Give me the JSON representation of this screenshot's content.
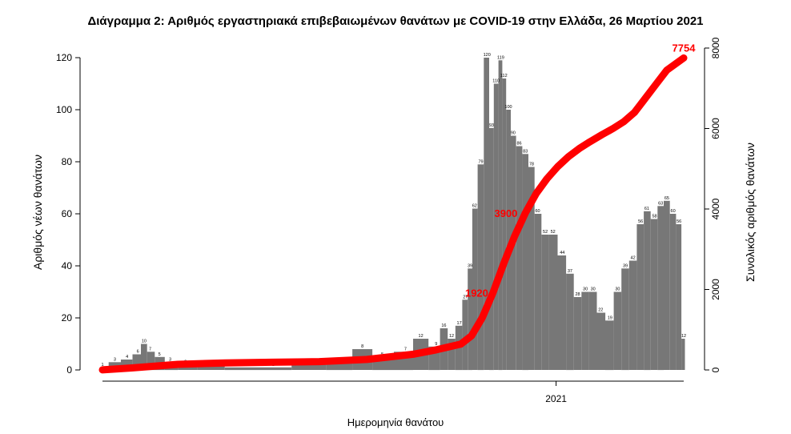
{
  "chart_data": {
    "type": "bar",
    "title": "Διάγραμμα 2: Αριθμός εργαστηριακά επιβεβαιωμένων θανάτων με COVID-19 στην Ελλάδα, 26 Μαρτίου 2021",
    "xlabel": "Ημερομηνία θανάτου",
    "ylabel": "Αριθμός νέων θανάτων",
    "ylabel_right": "Συνολικός αριθμός θανάτων",
    "ylim": [
      0,
      120
    ],
    "ylim_right": [
      0,
      8000
    ],
    "yticks": [
      0,
      20,
      40,
      60,
      80,
      100,
      120
    ],
    "yticks_right": [
      0,
      2000,
      4000,
      6000,
      8000
    ],
    "x_start": "2020-03-12",
    "x_end": "2021-03-25",
    "xtick_labels": [
      {
        "date": "2021-01-01",
        "label": "2021"
      }
    ],
    "daily_series_color": "#777777",
    "cumulative_series_color": "#ff0000",
    "daily_deaths": [
      {
        "date": "2020-03-12",
        "value": 1
      },
      {
        "date": "2020-03-20",
        "value": 3
      },
      {
        "date": "2020-03-28",
        "value": 4
      },
      {
        "date": "2020-04-04",
        "value": 6
      },
      {
        "date": "2020-04-08",
        "value": 10
      },
      {
        "date": "2020-04-12",
        "value": 7
      },
      {
        "date": "2020-04-18",
        "value": 5
      },
      {
        "date": "2020-04-25",
        "value": 3
      },
      {
        "date": "2020-05-05",
        "value": 2
      },
      {
        "date": "2020-05-20",
        "value": 2
      },
      {
        "date": "2020-06-10",
        "value": 1
      },
      {
        "date": "2020-07-01",
        "value": 1
      },
      {
        "date": "2020-07-25",
        "value": 2
      },
      {
        "date": "2020-08-15",
        "value": 3
      },
      {
        "date": "2020-08-28",
        "value": 8
      },
      {
        "date": "2020-09-10",
        "value": 5
      },
      {
        "date": "2020-09-25",
        "value": 7
      },
      {
        "date": "2020-10-05",
        "value": 12
      },
      {
        "date": "2020-10-15",
        "value": 9
      },
      {
        "date": "2020-10-20",
        "value": 16
      },
      {
        "date": "2020-10-25",
        "value": 12
      },
      {
        "date": "2020-10-30",
        "value": 17
      },
      {
        "date": "2020-11-03",
        "value": 27
      },
      {
        "date": "2020-11-06",
        "value": 39
      },
      {
        "date": "2020-11-09",
        "value": 62
      },
      {
        "date": "2020-11-13",
        "value": 79
      },
      {
        "date": "2020-11-17",
        "value": 120
      },
      {
        "date": "2020-11-20",
        "value": 93
      },
      {
        "date": "2020-11-23",
        "value": 110
      },
      {
        "date": "2020-11-26",
        "value": 119
      },
      {
        "date": "2020-11-28",
        "value": 112
      },
      {
        "date": "2020-12-01",
        "value": 100
      },
      {
        "date": "2020-12-04",
        "value": 90
      },
      {
        "date": "2020-12-08",
        "value": 86
      },
      {
        "date": "2020-12-12",
        "value": 83
      },
      {
        "date": "2020-12-16",
        "value": 78
      },
      {
        "date": "2020-12-20",
        "value": 60
      },
      {
        "date": "2020-12-25",
        "value": 52
      },
      {
        "date": "2020-12-30",
        "value": 52
      },
      {
        "date": "2021-01-05",
        "value": 44
      },
      {
        "date": "2021-01-10",
        "value": 37
      },
      {
        "date": "2021-01-15",
        "value": 28
      },
      {
        "date": "2021-01-20",
        "value": 30
      },
      {
        "date": "2021-01-25",
        "value": 30
      },
      {
        "date": "2021-01-30",
        "value": 22
      },
      {
        "date": "2021-02-05",
        "value": 19
      },
      {
        "date": "2021-02-10",
        "value": 30
      },
      {
        "date": "2021-02-15",
        "value": 39
      },
      {
        "date": "2021-02-20",
        "value": 42
      },
      {
        "date": "2021-02-25",
        "value": 56
      },
      {
        "date": "2021-03-01",
        "value": 61
      },
      {
        "date": "2021-03-06",
        "value": 58
      },
      {
        "date": "2021-03-10",
        "value": 63
      },
      {
        "date": "2021-03-14",
        "value": 65
      },
      {
        "date": "2021-03-18",
        "value": 60
      },
      {
        "date": "2021-03-22",
        "value": 56
      },
      {
        "date": "2021-03-25",
        "value": 12
      }
    ],
    "cumulative_deaths": [
      {
        "date": "2020-03-12",
        "value": 1
      },
      {
        "date": "2020-03-31",
        "value": 50
      },
      {
        "date": "2020-04-30",
        "value": 140
      },
      {
        "date": "2020-05-31",
        "value": 175
      },
      {
        "date": "2020-06-30",
        "value": 192
      },
      {
        "date": "2020-07-31",
        "value": 206
      },
      {
        "date": "2020-08-31",
        "value": 260
      },
      {
        "date": "2020-09-30",
        "value": 390
      },
      {
        "date": "2020-10-15",
        "value": 500
      },
      {
        "date": "2020-10-31",
        "value": 640
      },
      {
        "date": "2020-11-07",
        "value": 850
      },
      {
        "date": "2020-11-14",
        "value": 1300
      },
      {
        "date": "2020-11-21",
        "value": 1920
      },
      {
        "date": "2020-11-28",
        "value": 2650
      },
      {
        "date": "2020-12-05",
        "value": 3320
      },
      {
        "date": "2020-12-12",
        "value": 3900
      },
      {
        "date": "2020-12-19",
        "value": 4380
      },
      {
        "date": "2020-12-26",
        "value": 4750
      },
      {
        "date": "2021-01-02",
        "value": 5050
      },
      {
        "date": "2021-01-09",
        "value": 5300
      },
      {
        "date": "2021-01-16",
        "value": 5500
      },
      {
        "date": "2021-01-23",
        "value": 5670
      },
      {
        "date": "2021-01-31",
        "value": 5850
      },
      {
        "date": "2021-02-07",
        "value": 6000
      },
      {
        "date": "2021-02-14",
        "value": 6170
      },
      {
        "date": "2021-02-21",
        "value": 6400
      },
      {
        "date": "2021-02-28",
        "value": 6750
      },
      {
        "date": "2021-03-07",
        "value": 7100
      },
      {
        "date": "2021-03-14",
        "value": 7450
      },
      {
        "date": "2021-03-25",
        "value": 7754
      }
    ],
    "annotations": [
      {
        "date": "2020-11-20",
        "value": 1920,
        "text": "1920"
      },
      {
        "date": "2020-12-09",
        "value": 3900,
        "text": "3900"
      },
      {
        "date": "2021-03-25",
        "value": 7754,
        "text": "7754"
      }
    ]
  }
}
